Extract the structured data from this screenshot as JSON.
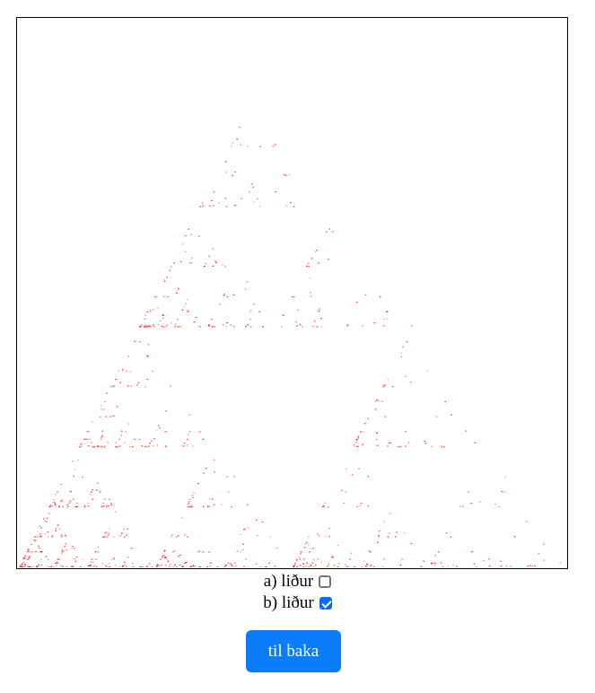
{
  "options": [
    {
      "label": "a) liður",
      "checked": false
    },
    {
      "label": "b) liður",
      "checked": true
    }
  ],
  "back_button": {
    "label": "til baka"
  },
  "colors": {
    "point": "#ff0000",
    "button": "#0b7dfb",
    "checkbox_checked": "#0b6cf0",
    "frame": "#000000"
  },
  "plot": {
    "description_icon": "sierpinski-scatter",
    "point_color": "#ff0000"
  }
}
